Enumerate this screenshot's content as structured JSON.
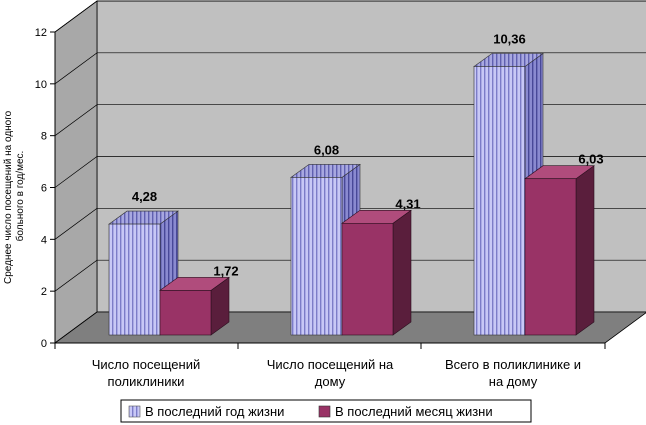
{
  "chart_data": {
    "type": "bar",
    "title": "",
    "ylabel_lines": [
      "Среднее число посещений на одного",
      "больного в год/мес."
    ],
    "xlabel": "",
    "ylim": [
      0,
      12
    ],
    "yticks": [
      0,
      2,
      4,
      6,
      8,
      10,
      12
    ],
    "grid": true,
    "legend_position": "bottom",
    "categories": [
      [
        "Число посещений",
        "поликлиники"
      ],
      [
        "Число посещений на",
        "дому"
      ],
      [
        "Всего в поликлинике и",
        "на дому"
      ]
    ],
    "series": [
      {
        "name": "В последний год жизни",
        "values": [
          4.28,
          6.08,
          10.36
        ],
        "labels": [
          "4,28",
          "6,08",
          "10,36"
        ],
        "color": "#c6c6f5",
        "stripe": "#8080cc"
      },
      {
        "name": "В последний месяц жизни",
        "values": [
          1.72,
          4.31,
          6.03
        ],
        "labels": [
          "1,72",
          "4,31",
          "6,03"
        ],
        "color": "#993366",
        "stripe": "#993366"
      }
    ]
  }
}
